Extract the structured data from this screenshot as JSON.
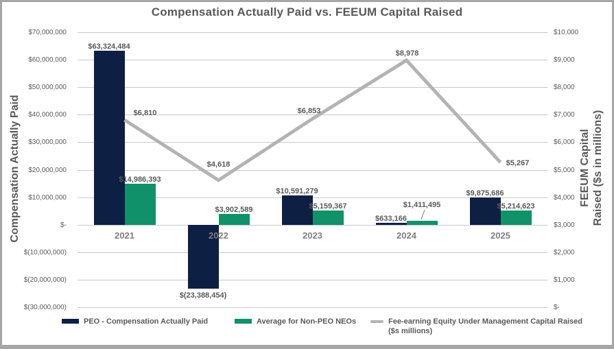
{
  "chart_data": {
    "type": "combo",
    "title": "Compensation Actually Paid vs. FEEUM Capital Raised",
    "categories": [
      "2021",
      "2022",
      "2023",
      "2024",
      "2025"
    ],
    "series": [
      {
        "name": "PEO - Compensation Actually Paid",
        "type": "bar",
        "axis": "left",
        "color": "#0e1f44",
        "values": [
          63324484,
          -23388454,
          10591279,
          633166,
          9875686
        ],
        "labels": [
          "$63,324,484",
          "$(23,388,454)",
          "$10,591,279",
          "$633,166",
          "$9,875,686"
        ]
      },
      {
        "name": "Average for Non-PEO NEOs",
        "type": "bar",
        "axis": "left",
        "color": "#10916a",
        "values": [
          14986393,
          3902589,
          5159367,
          1411495,
          5214623
        ],
        "labels": [
          "$14,986,393",
          "$3,902,589",
          "$5,159,367",
          "$1,411,495",
          "$5,214,623"
        ]
      },
      {
        "name": "Fee-earning Equity Under Management Capital Raised ($s millions)",
        "type": "line",
        "axis": "right",
        "color": "#b3b3b3",
        "values": [
          6810,
          4618,
          6853,
          8978,
          5267
        ],
        "labels": [
          "$6,810",
          "$4,618",
          "$6,853",
          "$8,978",
          "$5,267"
        ]
      }
    ],
    "left_axis": {
      "title": "Compensation Actually Paid",
      "min": -30000000,
      "max": 70000000,
      "tick_step": 10000000,
      "tick_labels": [
        "$70,000,000",
        "$60,000,000",
        "$50,000,000",
        "$40,000,000",
        "$30,000,000",
        "$20,000,000",
        "$10,000,000",
        "$-",
        "$(10,000,000)",
        "$(20,000,000)",
        "$(30,000,000)"
      ]
    },
    "right_axis": {
      "title_line1": "FEEUM Capital",
      "title_line2": "Raised ($s in millions)",
      "min": 0,
      "max": 10000,
      "tick_step": 1000,
      "tick_labels": [
        "$10,000",
        "$9,000",
        "$8,000",
        "$7,000",
        "$6,000",
        "$5,000",
        "$4,000",
        "$3,000",
        "$2,000",
        "$1,000",
        "$-"
      ]
    },
    "legend": [
      {
        "label": "PEO - Compensation Actually Paid",
        "swatch": "bar",
        "color": "#0e1f44"
      },
      {
        "label": "Average for Non-PEO NEOs",
        "swatch": "bar",
        "color": "#10916a"
      },
      {
        "label": "Fee-earning Equity Under Management Capital Raised",
        "label2": "($s millions)",
        "swatch": "line",
        "color": "#b3b3b3"
      }
    ],
    "grid": true,
    "legend_position": "bottom",
    "colors": {
      "grid": "#c8c8c8",
      "border": "#a6a6a6",
      "tick_text": "#595959",
      "category_text": "#7f7f7f",
      "title_text": "#595959",
      "data_label_text": "#595959",
      "background": "#ffffff"
    }
  }
}
